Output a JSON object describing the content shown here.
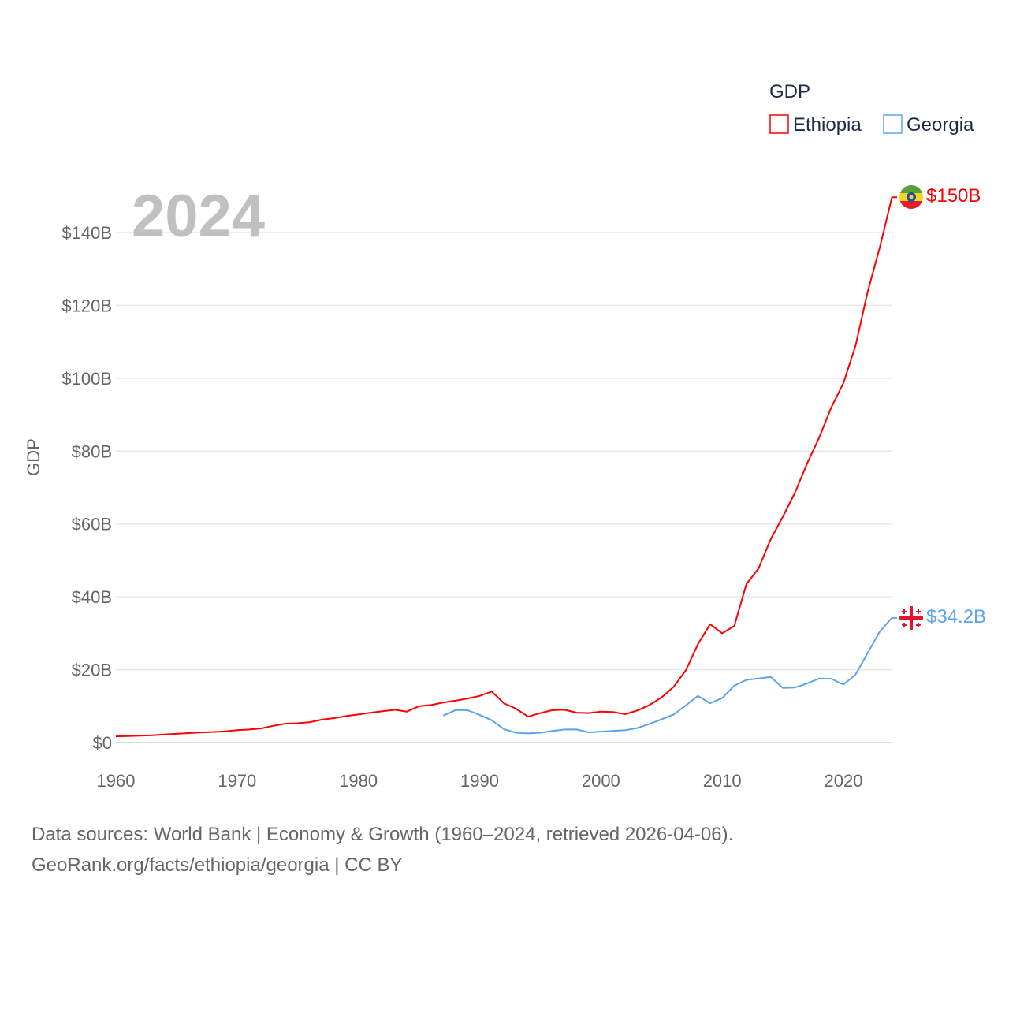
{
  "chart_data": {
    "type": "line",
    "title": "GDP",
    "year_label": "2024",
    "ylabel": "GDP",
    "xlabel": "",
    "xlim": [
      1960,
      2024
    ],
    "ylim": [
      0,
      140
    ],
    "x_ticks": [
      "1960",
      "1970",
      "1980",
      "1990",
      "2000",
      "2010",
      "2020"
    ],
    "y_ticks": [
      "$0",
      "$20B",
      "$40B",
      "$60B",
      "$80B",
      "$100B",
      "$120B",
      "$140B"
    ],
    "y_tick_values": [
      0,
      20,
      40,
      60,
      80,
      100,
      120,
      140
    ],
    "grid": true,
    "legend_position": "top-right",
    "series": [
      {
        "name": "Ethiopia",
        "color": "#ff0000",
        "end_label": "$150B",
        "flag_icon": "ethiopia-flag-icon",
        "start_year": 1960,
        "values": [
          1.7,
          1.8,
          1.9,
          2.0,
          2.2,
          2.4,
          2.6,
          2.8,
          2.9,
          3.1,
          3.4,
          3.6,
          3.9,
          4.6,
          5.2,
          5.3,
          5.6,
          6.3,
          6.7,
          7.3,
          7.7,
          8.2,
          8.6,
          9.0,
          8.5,
          10.0,
          10.3,
          11.0,
          11.5,
          12.1,
          12.8,
          14.0,
          10.8,
          9.3,
          7.1,
          8.1,
          8.9,
          9.0,
          8.2,
          8.1,
          8.5,
          8.4,
          7.8,
          8.8,
          10.3,
          12.4,
          15.3,
          19.8,
          27.0,
          32.5,
          30.0,
          32.0,
          43.5,
          47.8,
          55.8,
          62.0,
          68.6,
          76.6,
          83.7,
          92.0,
          98.7,
          109.0,
          123.8,
          136.0,
          149.7
        ]
      },
      {
        "name": "Georgia",
        "color": "#5ba4ec",
        "end_label": "$34.2B",
        "flag_icon": "georgia-flag-icon",
        "start_year": 1987,
        "values": [
          7.4,
          8.9,
          8.9,
          7.6,
          6.1,
          3.7,
          2.7,
          2.5,
          2.7,
          3.2,
          3.6,
          3.6,
          2.8,
          3.0,
          3.2,
          3.4,
          4.0,
          5.1,
          6.4,
          7.7,
          10.2,
          12.8,
          10.8,
          12.2,
          15.6,
          17.2,
          17.6,
          18.0,
          15.0,
          15.1,
          16.2,
          17.6,
          17.5,
          15.9,
          18.7,
          24.6,
          30.5,
          34.2
        ]
      }
    ]
  },
  "footer": {
    "line1": "Data sources: World Bank | Economy & Growth (1960–2024, retrieved 2026-04-06).",
    "line2": "GeoRank.org/facts/ethiopia/georgia | CC BY"
  }
}
